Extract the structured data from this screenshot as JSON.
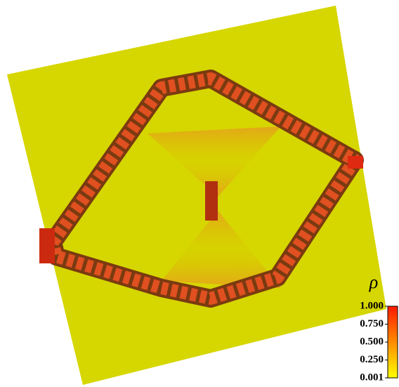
{
  "colorbar": {
    "label": "ρ",
    "lim": [
      0.001,
      1.0
    ],
    "ticks": [
      {
        "value": 1.0,
        "label": "1.000"
      },
      {
        "value": 0.75,
        "label": "0.750"
      },
      {
        "value": 0.5,
        "label": "0.500"
      },
      {
        "value": 0.25,
        "label": "0.250"
      },
      {
        "value": 0.001,
        "label": "0.001"
      }
    ],
    "colors": [
      "#ff1a00",
      "#ff8c00",
      "#ffff00"
    ]
  }
}
